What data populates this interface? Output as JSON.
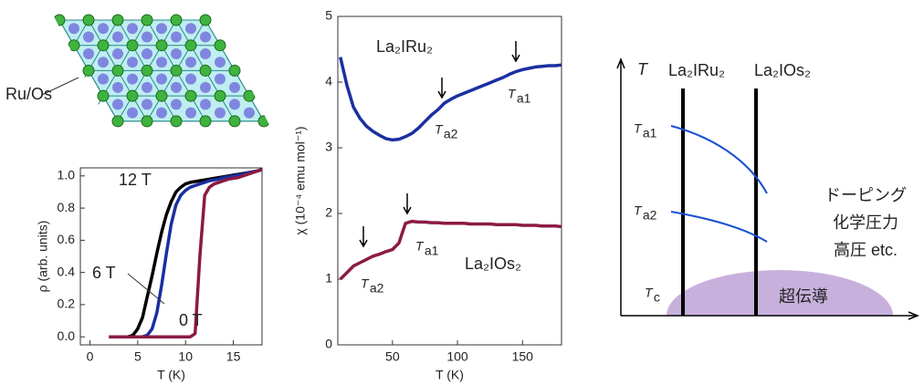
{
  "chart_data": [
    {
      "type": "line",
      "xlabel": "T (K)",
      "ylabel": "ρ (arb. units)",
      "xlim": [
        -1,
        18
      ],
      "xticks": [
        0,
        5,
        10,
        15
      ],
      "ylim": [
        -0.05,
        1.05
      ],
      "yticks": [
        {
          "value": 0,
          "label": "0.0"
        },
        0.2,
        0.4,
        0.6,
        0.8,
        {
          "value": 1,
          "label": "1.0"
        }
      ],
      "x": [
        2,
        2.5,
        3,
        3.5,
        4,
        4.5,
        5,
        5.5,
        6,
        6.5,
        7,
        7.5,
        8,
        8.5,
        9,
        9.5,
        10,
        10.5,
        11,
        11.5,
        12,
        12.5,
        13,
        13.5,
        14,
        14.5,
        15,
        15.5,
        16,
        16.5,
        17,
        17.5,
        18
      ],
      "series": [
        {
          "name": "12 T",
          "color": "#000000",
          "values": [
            0,
            0,
            0,
            0,
            0,
            0.01,
            0.05,
            0.12,
            0.25,
            0.38,
            0.52,
            0.65,
            0.76,
            0.84,
            0.9,
            0.93,
            0.95,
            0.96,
            0.965,
            0.97,
            0.975,
            0.98,
            0.985,
            0.99,
            0.995,
            1.0,
            1.005,
            1.01,
            1.015,
            1.02,
            1.025,
            1.03,
            1.04
          ]
        },
        {
          "name": "6 T",
          "color": "#1a2fa0",
          "values": [
            0,
            0,
            0,
            0,
            0,
            0,
            0,
            0,
            0.01,
            0.05,
            0.15,
            0.32,
            0.52,
            0.7,
            0.82,
            0.88,
            0.91,
            0.93,
            0.94,
            0.95,
            0.96,
            0.97,
            0.975,
            0.98,
            0.99,
            0.995,
            1.0,
            1.005,
            1.01,
            1.02,
            1.025,
            1.03,
            1.04
          ]
        },
        {
          "name": "0 T",
          "color": "#8b1a45",
          "values": [
            0,
            0,
            0,
            0,
            0,
            0,
            0,
            0,
            0,
            0,
            0,
            0,
            0,
            0,
            0,
            0,
            0,
            0,
            0.02,
            0.5,
            0.88,
            0.93,
            0.95,
            0.96,
            0.97,
            0.98,
            0.985,
            0.99,
            1.0,
            1.01,
            1.02,
            1.03,
            1.04
          ]
        }
      ]
    },
    {
      "type": "line",
      "xlabel": "T (K)",
      "ylabel": "χ (10⁻⁴ emu mol⁻¹)",
      "xlim": [
        8,
        180
      ],
      "xticks": [
        50,
        100,
        150
      ],
      "ylim": [
        0,
        5
      ],
      "yticks": [
        0,
        1,
        2,
        3,
        4,
        5
      ],
      "x": [
        10,
        15,
        20,
        25,
        30,
        35,
        40,
        45,
        50,
        55,
        60,
        65,
        70,
        75,
        80,
        85,
        90,
        95,
        100,
        105,
        110,
        115,
        120,
        125,
        130,
        135,
        140,
        145,
        150,
        155,
        160,
        165,
        170,
        175,
        180
      ],
      "series": [
        {
          "name": "La₂IRu₂",
          "color": "#1a2fa0",
          "values": [
            4.38,
            3.95,
            3.62,
            3.45,
            3.33,
            3.25,
            3.19,
            3.14,
            3.12,
            3.13,
            3.17,
            3.22,
            3.3,
            3.4,
            3.5,
            3.58,
            3.68,
            3.74,
            3.79,
            3.83,
            3.87,
            3.91,
            3.95,
            3.99,
            4.03,
            4.07,
            4.12,
            4.16,
            4.19,
            4.21,
            4.23,
            4.24,
            4.25,
            4.25,
            4.26
          ]
        },
        {
          "name": "La₂IOs₂",
          "color": "#8b1a45",
          "values": [
            1.0,
            1.1,
            1.2,
            1.25,
            1.3,
            1.35,
            1.38,
            1.42,
            1.45,
            1.55,
            1.85,
            1.88,
            1.87,
            1.87,
            1.86,
            1.86,
            1.85,
            1.85,
            1.85,
            1.85,
            1.84,
            1.84,
            1.84,
            1.84,
            1.83,
            1.83,
            1.83,
            1.83,
            1.82,
            1.82,
            1.82,
            1.81,
            1.81,
            1.81,
            1.8
          ]
        }
      ],
      "annotations": [
        {
          "symbol": "T",
          "sub": "a2"
        },
        {
          "symbol": "T",
          "sub": "a1"
        },
        {
          "symbol": "T",
          "sub": "a2"
        },
        {
          "symbol": "T",
          "sub": "a1"
        }
      ]
    }
  ],
  "lattice": {
    "label": "Ru/Os"
  },
  "phase_diagram": {
    "axis_label": "T",
    "compounds": [
      "La₂IRu₂",
      "La₂IOs₂"
    ],
    "levels": [
      {
        "symbol": "T",
        "sub": "a1"
      },
      {
        "symbol": "T",
        "sub": "a2"
      },
      {
        "symbol": "T",
        "sub": "c"
      }
    ],
    "notes": [
      "ドーピング",
      "化学圧力",
      "高圧 etc."
    ],
    "region": "超伝導"
  }
}
